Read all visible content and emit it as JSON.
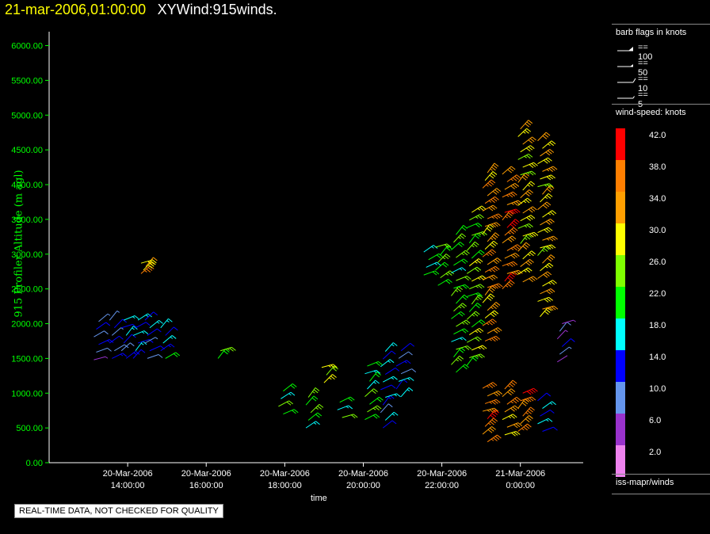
{
  "header": {
    "datetime": "21-mar-2006,01:00:00",
    "name": "XYWind:915winds."
  },
  "footer": {
    "notice": "REAL-TIME DATA, NOT CHECKED FOR QUALITY"
  },
  "colors": {
    "axis_green": "#00ff00",
    "title_yellow": "#ffff00",
    "background": "#000000"
  },
  "legend": {
    "barb_title": "barb flags in knots",
    "barb_items": [
      {
        "icon": "pennant-barb-icon",
        "label": "== 100"
      },
      {
        "icon": "pennant-barb-icon",
        "label": "== 50"
      },
      {
        "icon": "full-barb-icon",
        "label": "== 10"
      },
      {
        "icon": "half-barb-icon",
        "label": "== 5"
      }
    ],
    "speed_title": "wind-speed: knots",
    "speed_bins": [
      {
        "label": "42.0",
        "color": "#ff0000"
      },
      {
        "label": "38.0",
        "color": "#ff7f00"
      },
      {
        "label": "34.0",
        "color": "#ff9f00"
      },
      {
        "label": "30.0",
        "color": "#ffff00"
      },
      {
        "label": "26.0",
        "color": "#7fff00"
      },
      {
        "label": "22.0",
        "color": "#00ff00"
      },
      {
        "label": "18.0",
        "color": "#00ffff"
      },
      {
        "label": "14.0",
        "color": "#0000ff"
      },
      {
        "label": "10.0",
        "color": "#6495ed"
      },
      {
        "label": "6.0",
        "color": "#9932cc"
      },
      {
        "label": "2.0",
        "color": "#ee82ee"
      }
    ],
    "source": "iss-mapr/winds"
  },
  "chart_data": {
    "type": "scatter",
    "title": "",
    "xlabel": "time",
    "ylabel": "915 Profiler Altitude (m agl)",
    "ylim": [
      0,
      6200
    ],
    "xlim_hours": [
      12.0,
      25.6
    ],
    "yticks": [
      "6000.00",
      "5500.00",
      "5000.00",
      "4500.00",
      "4000.00",
      "3500.00",
      "3000.00",
      "2500.00",
      "2000.00",
      "1500.00",
      "1000.00",
      "500.00",
      "0.00"
    ],
    "xticks": [
      {
        "line1": "20-Mar-2006",
        "line2": "14:00:00",
        "h": 14
      },
      {
        "line1": "20-Mar-2006",
        "line2": "16:00:00",
        "h": 16
      },
      {
        "line1": "20-Mar-2006",
        "line2": "18:00:00",
        "h": 18
      },
      {
        "line1": "20-Mar-2006",
        "line2": "20:00:00",
        "h": 20
      },
      {
        "line1": "20-Mar-2006",
        "line2": "22:00:00",
        "h": 22
      },
      {
        "line1": "21-Mar-2006",
        "line2": "0:00:00",
        "h": 24
      }
    ],
    "series": [
      {
        "t": 13.2,
        "base": 1480,
        "top": 2080,
        "dz": 110,
        "speed": 11
      },
      {
        "t": 13.6,
        "base": 1500,
        "top": 2050,
        "dz": 110,
        "speed": 12
      },
      {
        "t": 13.9,
        "base": 1500,
        "top": 2050,
        "dz": 110,
        "speed": 14
      },
      {
        "t": 14.2,
        "base": 1500,
        "top": 2050,
        "dz": 110,
        "speed": 15
      },
      {
        "t": 14.5,
        "base": 1500,
        "top": 2050,
        "dz": 110,
        "speed": 13
      },
      {
        "t": 14.9,
        "base": 1500,
        "top": 2000,
        "dz": 110,
        "speed": 16
      },
      {
        "t": 14.4,
        "base": 2720,
        "top": 2870,
        "dz": 50,
        "speed": 34
      },
      {
        "t": 16.3,
        "base": 1500,
        "top": 1700,
        "dz": 110,
        "speed": 23
      },
      {
        "t": 17.9,
        "base": 700,
        "top": 1100,
        "dz": 110,
        "speed": 22
      },
      {
        "t": 18.6,
        "base": 500,
        "top": 1000,
        "dz": 110,
        "speed": 22
      },
      {
        "t": 19.0,
        "base": 1150,
        "top": 1400,
        "dz": 110,
        "speed": 26
      },
      {
        "t": 19.4,
        "base": 650,
        "top": 950,
        "dz": 110,
        "speed": 23
      },
      {
        "t": 20.1,
        "base": 620,
        "top": 1400,
        "dz": 110,
        "speed": 22
      },
      {
        "t": 20.5,
        "base": 500,
        "top": 1600,
        "dz": 110,
        "speed": 15
      },
      {
        "t": 20.9,
        "base": 950,
        "top": 1700,
        "dz": 110,
        "speed": 13
      },
      {
        "t": 21.6,
        "base": 2700,
        "top": 3100,
        "dz": 110,
        "speed": 21
      },
      {
        "t": 21.9,
        "base": 2550,
        "top": 3150,
        "dz": 110,
        "speed": 22
      },
      {
        "t": 22.3,
        "base": 1300,
        "top": 3350,
        "dz": 110,
        "speed": 23
      },
      {
        "t": 22.7,
        "base": 1400,
        "top": 3600,
        "dz": 110,
        "speed": 25
      },
      {
        "t": 23.1,
        "base": 1750,
        "top": 4250,
        "dz": 110,
        "speed": 34
      },
      {
        "t": 23.1,
        "base": 300,
        "top": 1150,
        "dz": 110,
        "speed": 36
      },
      {
        "t": 23.6,
        "base": 2500,
        "top": 4200,
        "dz": 110,
        "speed": 37
      },
      {
        "t": 23.6,
        "base": 400,
        "top": 1150,
        "dz": 110,
        "speed": 33
      },
      {
        "t": 24.0,
        "base": 2600,
        "top": 4900,
        "dz": 110,
        "speed": 30
      },
      {
        "t": 24.0,
        "base": 450,
        "top": 1100,
        "dz": 110,
        "speed": 36
      },
      {
        "t": 24.5,
        "base": 2100,
        "top": 4650,
        "dz": 110,
        "speed": 31
      },
      {
        "t": 24.5,
        "base": 450,
        "top": 900,
        "dz": 110,
        "speed": 16
      },
      {
        "t": 25.0,
        "base": 1450,
        "top": 2000,
        "dz": 110,
        "speed": 8
      }
    ]
  }
}
